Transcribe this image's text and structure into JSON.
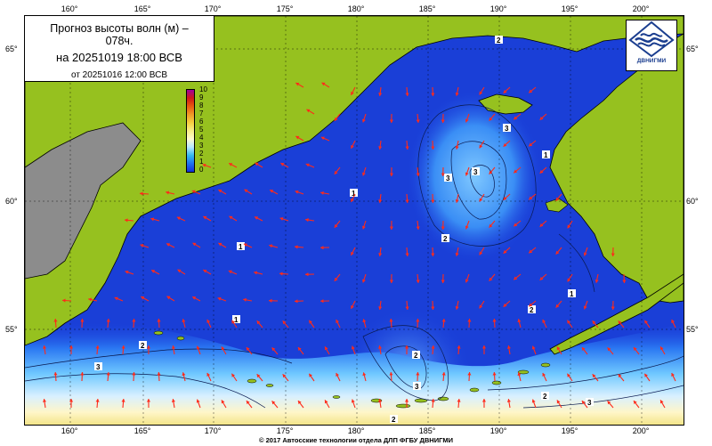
{
  "info": {
    "title_line1": "Прогноз высоты волн (м) –",
    "title_line2": "078ч.",
    "forecast_datetime": "на 20251019 18:00 ВСВ",
    "base_datetime": "от 20251016 12:00 ВСВ"
  },
  "logo": {
    "text": "ДВНИГМИ",
    "icon": "dvnigmi-wave-logo"
  },
  "legend": {
    "labels": [
      "10",
      "9",
      "8",
      "7",
      "6",
      "5",
      "4",
      "3",
      "2",
      "1",
      "0"
    ]
  },
  "axes": {
    "lon_labels": [
      "160°",
      "165°",
      "170°",
      "175°",
      "180°",
      "185°",
      "190°",
      "195°",
      "200°"
    ],
    "lat_labels": [
      "65°",
      "60°",
      "55°"
    ]
  },
  "contour_labels": [
    "2",
    "3",
    "3",
    "3",
    "1",
    "1",
    "1",
    "2",
    "2",
    "3",
    "2",
    "2",
    "3",
    "1",
    "2",
    "3",
    "1",
    "2"
  ],
  "copyright": "© 2017 Автоcские технологии отдела ДЛП ФГБУ ДВНИГМИ",
  "colors": {
    "sea_deep": "#1d48e0",
    "land": "#96c11f",
    "land_gray": "#8c8c8c",
    "arrow": "#ff2a1a"
  }
}
